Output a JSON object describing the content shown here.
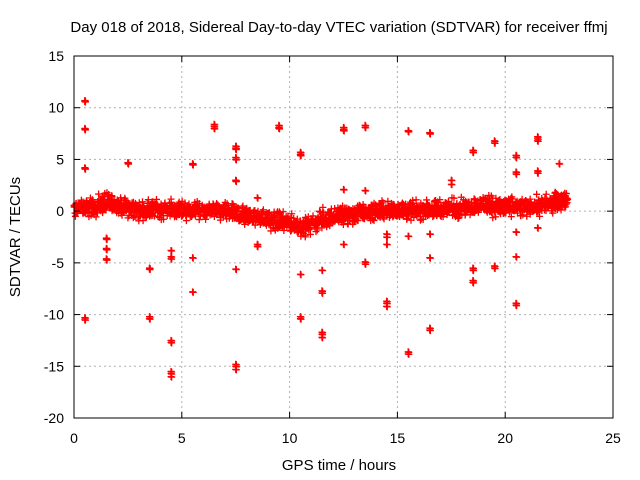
{
  "chart_data": {
    "type": "scatter",
    "title": "Day 018 of 2018, Sidereal Day-to-day VTEC variation (SDTVAR) for receiver ffmj",
    "xlabel": "GPS time / hours",
    "ylabel": "SDTVAR / TECUs",
    "xlim": [
      0,
      25
    ],
    "ylim": [
      -20,
      15
    ],
    "xticks": [
      0,
      5,
      10,
      15,
      20,
      25
    ],
    "yticks": [
      -20,
      -15,
      -10,
      -5,
      0,
      5,
      10,
      15
    ],
    "xtick_labels": [
      "0",
      "5",
      "10",
      "15",
      "20",
      "25"
    ],
    "ytick_labels": [
      "-20",
      "-15",
      "-10",
      "-5",
      "0",
      "5",
      "10",
      "15"
    ],
    "grid": true,
    "marker": "+",
    "color": "#ff0000",
    "dense_band": {
      "x_start": 0.0,
      "x_end": 22.9,
      "center": [
        [
          0.0,
          0.2
        ],
        [
          1.0,
          0.4
        ],
        [
          1.5,
          0.8
        ],
        [
          2.0,
          0.6
        ],
        [
          2.5,
          0.3
        ],
        [
          3.0,
          0.1
        ],
        [
          4.0,
          0.1
        ],
        [
          5.0,
          0.1
        ],
        [
          6.0,
          0.1
        ],
        [
          7.0,
          -0.1
        ],
        [
          8.0,
          -0.4
        ],
        [
          9.0,
          -0.8
        ],
        [
          10.0,
          -1.2
        ],
        [
          10.5,
          -1.5
        ],
        [
          11.0,
          -1.3
        ],
        [
          11.5,
          -0.8
        ],
        [
          12.0,
          -0.5
        ],
        [
          13.0,
          -0.3
        ],
        [
          14.0,
          0.0
        ],
        [
          15.0,
          0.0
        ],
        [
          16.0,
          0.1
        ],
        [
          17.0,
          0.2
        ],
        [
          18.0,
          0.4
        ],
        [
          19.0,
          0.6
        ],
        [
          20.0,
          0.4
        ],
        [
          21.0,
          0.3
        ],
        [
          22.0,
          0.7
        ],
        [
          22.9,
          1.2
        ]
      ],
      "spread": 0.9
    },
    "outlier_points": [
      [
        0.5,
        10.7
      ],
      [
        0.5,
        10.6
      ],
      [
        0.5,
        8.0
      ],
      [
        0.5,
        7.9
      ],
      [
        0.5,
        4.2
      ],
      [
        0.5,
        4.1
      ],
      [
        0.5,
        -10.3
      ],
      [
        0.5,
        -10.5
      ],
      [
        1.5,
        -2.6
      ],
      [
        1.5,
        -2.7
      ],
      [
        1.5,
        -3.6
      ],
      [
        1.5,
        -3.7
      ],
      [
        1.5,
        -4.6
      ],
      [
        1.5,
        -4.7
      ],
      [
        2.5,
        4.7
      ],
      [
        2.5,
        4.6
      ],
      [
        3.5,
        -5.5
      ],
      [
        3.5,
        -5.6
      ],
      [
        3.5,
        -10.2
      ],
      [
        3.5,
        -10.4
      ],
      [
        4.5,
        -12.5
      ],
      [
        4.5,
        -12.7
      ],
      [
        4.5,
        -15.5
      ],
      [
        4.5,
        -15.7
      ],
      [
        4.5,
        -16.0
      ],
      [
        4.5,
        -3.8
      ],
      [
        4.5,
        -4.4
      ],
      [
        4.5,
        -4.6
      ],
      [
        5.5,
        4.6
      ],
      [
        5.5,
        4.5
      ],
      [
        5.5,
        -4.5
      ],
      [
        5.5,
        -7.8
      ],
      [
        6.5,
        8.4
      ],
      [
        6.5,
        8.2
      ],
      [
        6.5,
        8.0
      ],
      [
        7.5,
        6.3
      ],
      [
        7.5,
        6.1
      ],
      [
        7.5,
        6.0
      ],
      [
        7.5,
        5.2
      ],
      [
        7.5,
        5.0
      ],
      [
        7.5,
        3.0
      ],
      [
        7.5,
        2.9
      ],
      [
        7.5,
        -5.6
      ],
      [
        7.5,
        -14.8
      ],
      [
        7.5,
        -15.0
      ],
      [
        7.5,
        -15.3
      ],
      [
        8.5,
        -3.2
      ],
      [
        8.5,
        -3.4
      ],
      [
        8.5,
        1.3
      ],
      [
        9.5,
        8.3
      ],
      [
        9.5,
        8.1
      ],
      [
        9.5,
        8.0
      ],
      [
        10.5,
        5.7
      ],
      [
        10.5,
        5.5
      ],
      [
        10.5,
        5.4
      ],
      [
        10.5,
        -6.1
      ],
      [
        10.5,
        -10.2
      ],
      [
        10.5,
        -10.4
      ],
      [
        11.5,
        -5.7
      ],
      [
        11.5,
        -7.7
      ],
      [
        11.5,
        -7.9
      ],
      [
        11.5,
        -11.7
      ],
      [
        11.5,
        -11.9
      ],
      [
        11.5,
        -12.2
      ],
      [
        12.5,
        8.1
      ],
      [
        12.5,
        7.9
      ],
      [
        12.5,
        7.8
      ],
      [
        12.5,
        2.1
      ],
      [
        12.5,
        -3.2
      ],
      [
        13.5,
        8.3
      ],
      [
        13.5,
        8.1
      ],
      [
        13.5,
        2.0
      ],
      [
        13.5,
        -4.9
      ],
      [
        13.5,
        -5.1
      ],
      [
        14.5,
        -2.2
      ],
      [
        14.5,
        -2.5
      ],
      [
        14.5,
        -3.2
      ],
      [
        14.5,
        -8.7
      ],
      [
        14.5,
        -8.9
      ],
      [
        14.5,
        -9.2
      ],
      [
        15.5,
        7.8
      ],
      [
        15.5,
        7.7
      ],
      [
        15.5,
        -2.4
      ],
      [
        15.5,
        -13.6
      ],
      [
        15.5,
        -13.8
      ],
      [
        16.5,
        7.6
      ],
      [
        16.5,
        7.5
      ],
      [
        16.5,
        -2.2
      ],
      [
        16.5,
        -4.5
      ],
      [
        16.5,
        -11.3
      ],
      [
        16.5,
        -11.5
      ],
      [
        17.5,
        3.0
      ],
      [
        17.5,
        2.6
      ],
      [
        18.5,
        5.9
      ],
      [
        18.5,
        5.7
      ],
      [
        18.5,
        -5.5
      ],
      [
        18.5,
        -5.7
      ],
      [
        18.5,
        -6.7
      ],
      [
        18.5,
        -6.9
      ],
      [
        19.5,
        6.8
      ],
      [
        19.5,
        6.6
      ],
      [
        19.5,
        -5.3
      ],
      [
        19.5,
        -5.5
      ],
      [
        20.5,
        5.4
      ],
      [
        20.5,
        5.2
      ],
      [
        20.5,
        3.8
      ],
      [
        20.5,
        3.6
      ],
      [
        20.5,
        -2.0
      ],
      [
        20.5,
        -4.4
      ],
      [
        20.5,
        -8.9
      ],
      [
        20.5,
        -9.1
      ],
      [
        21.5,
        7.2
      ],
      [
        21.5,
        7.0
      ],
      [
        21.5,
        6.8
      ],
      [
        21.5,
        3.9
      ],
      [
        21.5,
        3.7
      ],
      [
        21.5,
        -1.6
      ],
      [
        22.5,
        4.6
      ]
    ]
  }
}
